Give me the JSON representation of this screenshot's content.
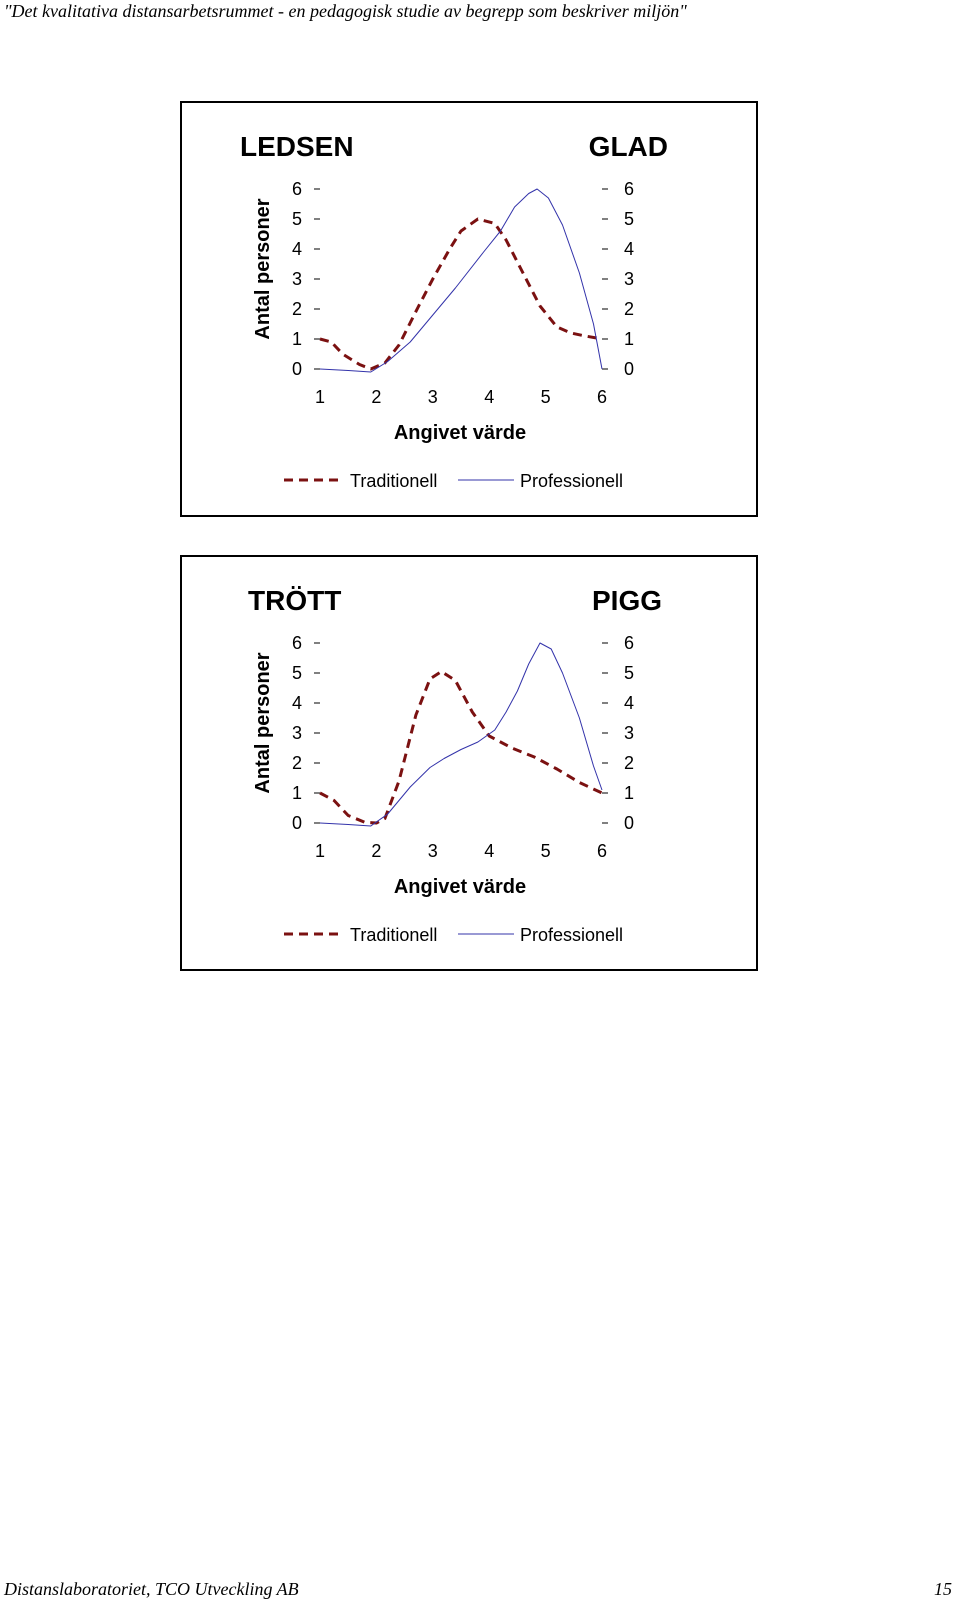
{
  "page": {
    "header": "\"Det kvalitativa distansarbetsrummet - en pedagogisk studie av begrepp som beskriver miljön\"",
    "footer_left": "Distanslaboratoriet, TCO Utveckling AB",
    "footer_right": "15"
  },
  "colors": {
    "traditionell": "#7b1111",
    "professionell": "#3333aa",
    "axis": "#000000"
  },
  "chart_data": [
    {
      "type": "line",
      "title_left": "LEDSEN",
      "title_right": "GLAD",
      "xlabel": "Angivet värde",
      "ylabel": "Antal  personer",
      "x_ticks": [
        "1",
        "2",
        "3",
        "4",
        "5",
        "6"
      ],
      "y_ticks": [
        "0",
        "1",
        "2",
        "3",
        "4",
        "5",
        "6"
      ],
      "y_ticks_right": [
        "0",
        "1",
        "2",
        "3",
        "4",
        "5",
        "6"
      ],
      "xlim": [
        1,
        6
      ],
      "ylim": [
        0,
        6
      ],
      "series": [
        {
          "name": "Traditionell",
          "style": "dashed",
          "points": [
            [
              1,
              1
            ],
            [
              1.2,
              0.9
            ],
            [
              1.4,
              0.5
            ],
            [
              1.7,
              0.15
            ],
            [
              1.9,
              0
            ],
            [
              2.15,
              0.2
            ],
            [
              2.4,
              0.8
            ],
            [
              2.75,
              2.1
            ],
            [
              3.0,
              3.0
            ],
            [
              3.3,
              4.0
            ],
            [
              3.5,
              4.6
            ],
            [
              3.8,
              5.0
            ],
            [
              4.1,
              4.85
            ],
            [
              4.3,
              4.3
            ],
            [
              4.6,
              3.2
            ],
            [
              4.9,
              2.1
            ],
            [
              5.2,
              1.4
            ],
            [
              5.45,
              1.2
            ],
            [
              5.7,
              1.1
            ],
            [
              6,
              1.0
            ]
          ]
        },
        {
          "name": "Professionell",
          "style": "solid",
          "points": [
            [
              1,
              0
            ],
            [
              1.5,
              -0.05
            ],
            [
              1.9,
              -0.1
            ],
            [
              2.2,
              0.25
            ],
            [
              2.6,
              0.9
            ],
            [
              3.0,
              1.8
            ],
            [
              3.4,
              2.7
            ],
            [
              3.9,
              3.9
            ],
            [
              4.2,
              4.6
            ],
            [
              4.45,
              5.4
            ],
            [
              4.7,
              5.85
            ],
            [
              4.85,
              6.0
            ],
            [
              5.05,
              5.7
            ],
            [
              5.3,
              4.8
            ],
            [
              5.6,
              3.2
            ],
            [
              5.85,
              1.5
            ],
            [
              6,
              0
            ]
          ]
        }
      ]
    },
    {
      "type": "line",
      "title_left": "TRÖTT",
      "title_right": "PIGG",
      "xlabel": "Angivet värde",
      "ylabel": "Antal  personer",
      "x_ticks": [
        "1",
        "2",
        "3",
        "4",
        "5",
        "6"
      ],
      "y_ticks": [
        "0",
        "1",
        "2",
        "3",
        "4",
        "5",
        "6"
      ],
      "y_ticks_right": [
        "0",
        "1",
        "2",
        "3",
        "4",
        "5",
        "6"
      ],
      "xlim": [
        1,
        6
      ],
      "ylim": [
        0,
        6
      ],
      "series": [
        {
          "name": "Traditionell",
          "style": "dashed",
          "points": [
            [
              1,
              1
            ],
            [
              1.25,
              0.75
            ],
            [
              1.5,
              0.25
            ],
            [
              1.8,
              0.02
            ],
            [
              2.0,
              0
            ],
            [
              2.15,
              0.15
            ],
            [
              2.4,
              1.4
            ],
            [
              2.7,
              3.6
            ],
            [
              2.95,
              4.8
            ],
            [
              3.15,
              5.05
            ],
            [
              3.4,
              4.75
            ],
            [
              3.7,
              3.7
            ],
            [
              4.0,
              2.9
            ],
            [
              4.4,
              2.5
            ],
            [
              4.8,
              2.2
            ],
            [
              5.2,
              1.8
            ],
            [
              5.6,
              1.35
            ],
            [
              6,
              1.0
            ]
          ]
        },
        {
          "name": "Professionell",
          "style": "solid",
          "points": [
            [
              1,
              0
            ],
            [
              1.5,
              -0.05
            ],
            [
              1.9,
              -0.1
            ],
            [
              2.2,
              0.3
            ],
            [
              2.6,
              1.2
            ],
            [
              2.95,
              1.85
            ],
            [
              3.2,
              2.15
            ],
            [
              3.5,
              2.45
            ],
            [
              3.8,
              2.7
            ],
            [
              4.1,
              3.1
            ],
            [
              4.3,
              3.7
            ],
            [
              4.5,
              4.4
            ],
            [
              4.7,
              5.3
            ],
            [
              4.9,
              6.0
            ],
            [
              5.1,
              5.8
            ],
            [
              5.3,
              5.0
            ],
            [
              5.6,
              3.5
            ],
            [
              5.85,
              1.9
            ],
            [
              6,
              1.1
            ]
          ]
        }
      ]
    }
  ]
}
